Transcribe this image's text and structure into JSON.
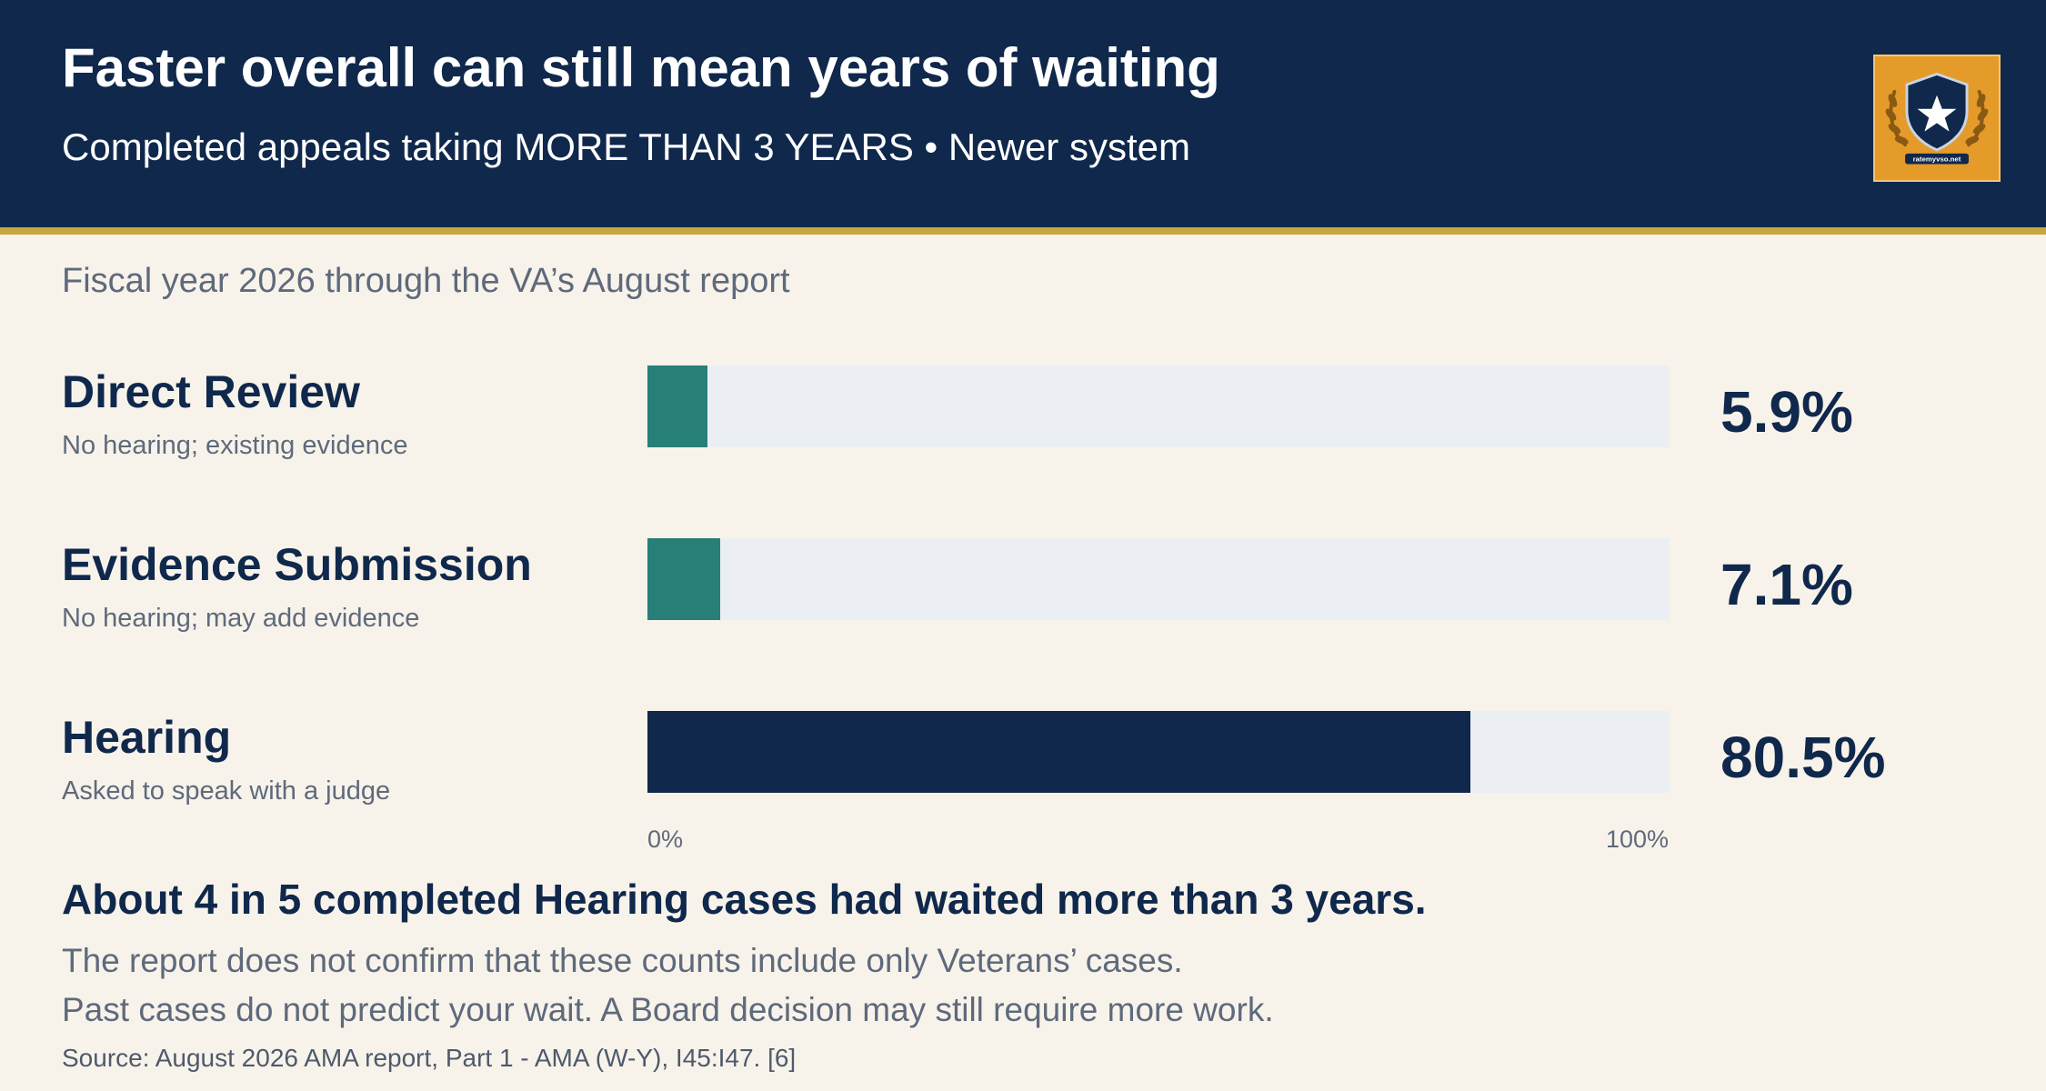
{
  "header": {
    "title": "Faster overall can still mean years of waiting",
    "subtitle": "Completed appeals taking MORE THAN 3 YEARS • Newer system"
  },
  "logo": {
    "icon": "shield-star-laurel-icon",
    "text": "ratemyvso.net"
  },
  "period": "Fiscal year 2026 through the VA’s August report",
  "chart_data": {
    "type": "bar",
    "orientation": "horizontal",
    "categories": [
      "Direct Review",
      "Evidence Submission",
      "Hearing"
    ],
    "descriptions": [
      "No hearing; existing evidence",
      "No hearing; may add evidence",
      "Asked to speak with a judge"
    ],
    "values": [
      5.9,
      7.1,
      80.5
    ],
    "value_labels": [
      "5.9%",
      "7.1%",
      "80.5%"
    ],
    "xlim": [
      0,
      100
    ],
    "tick_labels": [
      "0%",
      "100%"
    ],
    "bar_colors": [
      "#287f78",
      "#287f78",
      "#0f284c"
    ],
    "track_color": "#ebeff4",
    "grid": false
  },
  "takeaway": "About 4 in 5 completed Hearing cases had waited more than 3 years.",
  "notes": [
    "The report does not confirm that these counts include only Veterans’ cases.",
    "Past cases do not predict your wait. A Board decision may still require more work."
  ],
  "source": "Source: August 2026 AMA report, Part 1 - AMA (W-Y), I45:I47. [6]"
}
